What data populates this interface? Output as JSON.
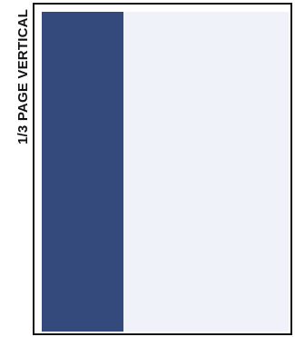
{
  "label": {
    "text": "1/3 PAGE VERTICAL"
  },
  "colors": {
    "ad_block": "#354a7c",
    "page_area": "#eff2f8",
    "frame": "#111111"
  }
}
